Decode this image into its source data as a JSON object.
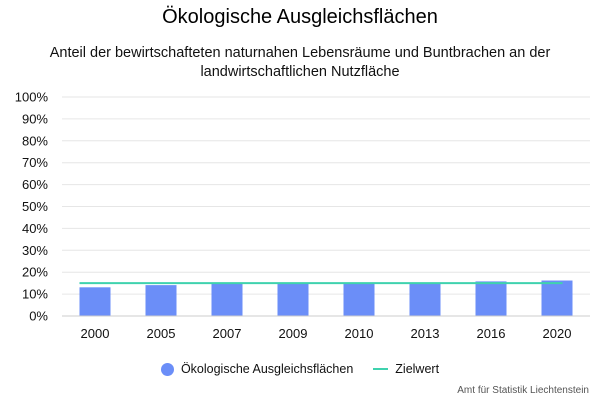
{
  "chart_data": {
    "type": "bar",
    "title": "Ökologische Ausgleichsflächen",
    "subtitle": "Anteil der bewirtschafteten naturnahen Lebensräume und Buntbrachen an der landwirtschaftlichen Nutzfläche",
    "categories": [
      "2000",
      "2005",
      "2007",
      "2009",
      "2010",
      "2013",
      "2016",
      "2020"
    ],
    "series": [
      {
        "name": "Ökologische Ausgleichsflächen",
        "type": "bar",
        "values": [
          13.1,
          14.1,
          14.7,
          14.9,
          14.9,
          15.0,
          15.8,
          16.2
        ]
      },
      {
        "name": "Zielwert",
        "type": "line",
        "values": [
          15,
          15,
          15,
          15,
          15,
          15,
          15,
          15
        ]
      }
    ],
    "ylim": [
      0,
      100
    ],
    "yticks": [
      0,
      10,
      20,
      30,
      40,
      50,
      60,
      70,
      80,
      90,
      100
    ],
    "ytick_suffix": "%",
    "grid": true,
    "legend_position": "bottom-center",
    "colors": {
      "bar": "#6b8ef8",
      "target": "#3fd2ae",
      "grid": "#e6e6e6"
    }
  },
  "credits": "Amt für Statistik Liechtenstein"
}
